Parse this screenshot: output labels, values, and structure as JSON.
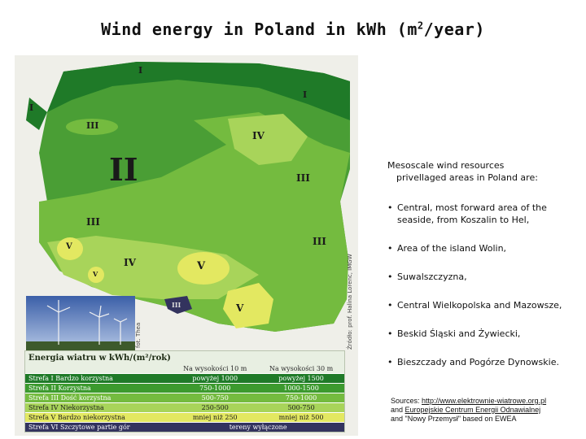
{
  "title": "Wind energy in Poland in kWh (m",
  "title_sup": "2",
  "title_tail": "/year)",
  "map": {
    "zones": [
      "I",
      "I",
      "I",
      "III",
      "II",
      "IV",
      "III",
      "III",
      "III",
      "V",
      "IV",
      "V",
      "V",
      "III",
      "V"
    ],
    "credit_left": "fot. Thea",
    "credit_right": "Źródło: prof. Halina Lorenc, IMGW"
  },
  "legend": {
    "title": "Energia wiatru w kWh/(m²/rok)",
    "headers": [
      "",
      "Na wysokości 10 m",
      "Na wysokości 30 m"
    ],
    "rows": [
      {
        "zone": "Strefa I",
        "desc": "Bardzo korzystna",
        "h10": "powyżej 1000",
        "h30": "powyżej 1500",
        "color": "#1f7a28"
      },
      {
        "zone": "Strefa II",
        "desc": "Korzystna",
        "h10": "750-1000",
        "h30": "1000-1500",
        "color": "#3c9a2e"
      },
      {
        "zone": "Strefa III",
        "desc": "Dość korzystna",
        "h10": "500-750",
        "h30": "750-1000",
        "color": "#74bb3f"
      },
      {
        "zone": "Strefa IV",
        "desc": "Niekorzystna",
        "h10": "250-500",
        "h30": "500-750",
        "color": "#a8d45a"
      },
      {
        "zone": "Strefa V",
        "desc": "Bardzo niekorzystna",
        "h10": "mniej niż 250",
        "h30": "mniej niż 500",
        "color": "#e3e861"
      },
      {
        "zone": "Strefa VI",
        "desc": "Szczytowe partie gór",
        "h10": "tereny wyłączone",
        "h30": "",
        "color": "#33335e"
      }
    ]
  },
  "info": {
    "heading_line1": "Mesoscale wind resources",
    "heading_line2": "privellaged areas in Poland are:",
    "items": [
      "Central, most forward area of the seaside, from Koszalin to Hel,",
      "Area of the island Wolin,",
      "Suwalszczyzna,",
      "Central Wielkopolska and Mazowsze,",
      "Beskid Śląski and Żywiecki,",
      "Bieszczady and Pogórze Dynowskie."
    ]
  },
  "sources": {
    "prefix": "Sources: ",
    "link1": "http://www.elektrownie-wiatrowe.org.pl",
    "and1": "and ",
    "link2": "Europejskie Centrum Energii Odnawialnej",
    "line3": "and \"Nowy Przemysł\" based on EWEA"
  }
}
